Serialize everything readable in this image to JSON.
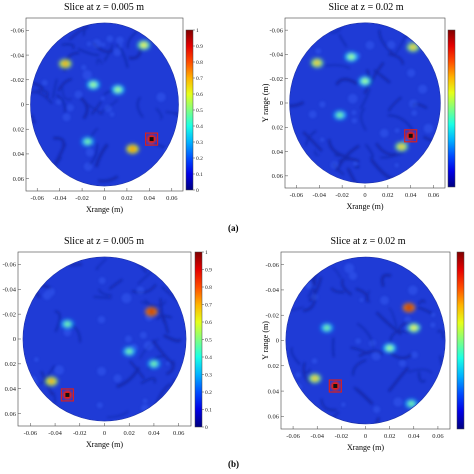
{
  "panel_labels": {
    "a": "(a)",
    "b": "(b)"
  },
  "colors": {
    "field_base": "#1f3bd6",
    "field_dark": "#0c1f8f",
    "hot_spot": "#8fd8ff",
    "target_box": "#d62020"
  },
  "chart_data": [
    {
      "type": "heatmap",
      "title": "Slice at z = 0.005 m",
      "xlabel": "Xrange (m)",
      "ylabel": "",
      "xticks": [
        "-0.06",
        "-0.04",
        "-0.02",
        "0",
        "0.02",
        "0.04",
        "0.06"
      ],
      "yticks": [
        "-0.06",
        "-0.04",
        "-0.02",
        "0",
        "0.02",
        "0.04",
        "0.06"
      ],
      "xlim": [
        -0.07,
        0.07
      ],
      "ylim": [
        -0.07,
        0.07
      ],
      "y_inverted": true,
      "colorbar_ticks": [
        "0",
        "0.1",
        "0.2",
        "0.3",
        "0.4",
        "0.5",
        "0.6",
        "0.7",
        "0.8",
        "0.9",
        "1"
      ],
      "colorbar_range": [
        0,
        1
      ],
      "target": {
        "x": 0.042,
        "y": 0.028,
        "value": 1.0
      },
      "blobs": [
        {
          "x": -0.035,
          "y": -0.033,
          "value": 0.55
        },
        {
          "x": 0.035,
          "y": -0.048,
          "value": 0.45
        },
        {
          "x": -0.01,
          "y": -0.016,
          "value": 0.35
        },
        {
          "x": 0.012,
          "y": -0.012,
          "value": 0.35
        },
        {
          "x": 0.025,
          "y": 0.036,
          "value": 0.6
        },
        {
          "x": -0.015,
          "y": 0.03,
          "value": 0.3
        }
      ]
    },
    {
      "type": "heatmap",
      "title": "Slice at z = 0.02 m",
      "xlabel": "Xrange (m)",
      "ylabel": "Y range (m)",
      "xticks": [
        "-0.06",
        "-0.04",
        "-0.02",
        "0",
        "0.02",
        "0.04",
        "0.06"
      ],
      "yticks": [
        "-0.06",
        "-0.04",
        "-0.02",
        "0",
        "0.02",
        "0.04",
        "0.06"
      ],
      "xlim": [
        -0.07,
        0.07
      ],
      "ylim": [
        -0.07,
        0.07
      ],
      "y_inverted": true,
      "colorbar_ticks": [],
      "colorbar_range": [
        0,
        1
      ],
      "target": {
        "x": 0.04,
        "y": 0.027,
        "value": 1.0
      },
      "blobs": [
        {
          "x": -0.042,
          "y": -0.033,
          "value": 0.5
        },
        {
          "x": 0.042,
          "y": -0.046,
          "value": 0.5
        },
        {
          "x": -0.012,
          "y": -0.038,
          "value": 0.35
        },
        {
          "x": 0.0,
          "y": -0.018,
          "value": 0.35
        },
        {
          "x": 0.032,
          "y": 0.036,
          "value": 0.5
        },
        {
          "x": -0.022,
          "y": 0.01,
          "value": 0.3
        }
      ]
    },
    {
      "type": "heatmap",
      "title": "Slice at z = 0.005 m",
      "xlabel": "Xrange (m)",
      "ylabel": "",
      "xticks": [
        "-0.06",
        "-0.04",
        "-0.02",
        "0",
        "0.02",
        "0.04",
        "0.06"
      ],
      "yticks": [
        "-0.06",
        "-0.04",
        "-0.02",
        "0",
        "0.02",
        "0.04",
        "0.06"
      ],
      "xlim": [
        -0.07,
        0.07
      ],
      "ylim": [
        -0.07,
        0.07
      ],
      "y_inverted": true,
      "colorbar_ticks": [
        "0",
        "0.1",
        "0.2",
        "0.3",
        "0.4",
        "0.5",
        "0.6",
        "0.7",
        "0.8",
        "0.9",
        "1"
      ],
      "colorbar_range": [
        0,
        1
      ],
      "target": {
        "x": -0.03,
        "y": 0.045,
        "value": 1.0
      },
      "blobs": [
        {
          "x": 0.038,
          "y": -0.022,
          "value": 0.75
        },
        {
          "x": -0.043,
          "y": 0.034,
          "value": 0.55
        },
        {
          "x": -0.03,
          "y": -0.012,
          "value": 0.3
        },
        {
          "x": 0.02,
          "y": 0.01,
          "value": 0.3
        },
        {
          "x": 0.04,
          "y": 0.02,
          "value": 0.3
        }
      ]
    },
    {
      "type": "heatmap",
      "title": "Slice at z = 0.02 m",
      "xlabel": "Xrange (m)",
      "ylabel": "Y range (m)",
      "xticks": [
        "-0.06",
        "-0.04",
        "-0.02",
        "0",
        "0.02",
        "0.04",
        "0.06"
      ],
      "yticks": [
        "-0.06",
        "-0.04",
        "-0.02",
        "0",
        "0.02",
        "0.04",
        "0.06"
      ],
      "xlim": [
        -0.07,
        0.07
      ],
      "ylim": [
        -0.07,
        0.07
      ],
      "y_inverted": true,
      "colorbar_ticks": [],
      "colorbar_range": [
        0,
        1
      ],
      "target": {
        "x": -0.025,
        "y": 0.036,
        "value": 1.0
      },
      "blobs": [
        {
          "x": 0.036,
          "y": -0.026,
          "value": 0.75
        },
        {
          "x": 0.04,
          "y": -0.01,
          "value": 0.45
        },
        {
          "x": -0.042,
          "y": 0.03,
          "value": 0.5
        },
        {
          "x": -0.032,
          "y": -0.01,
          "value": 0.3
        },
        {
          "x": 0.02,
          "y": 0.006,
          "value": 0.35
        },
        {
          "x": 0.038,
          "y": 0.05,
          "value": 0.3
        }
      ]
    }
  ]
}
